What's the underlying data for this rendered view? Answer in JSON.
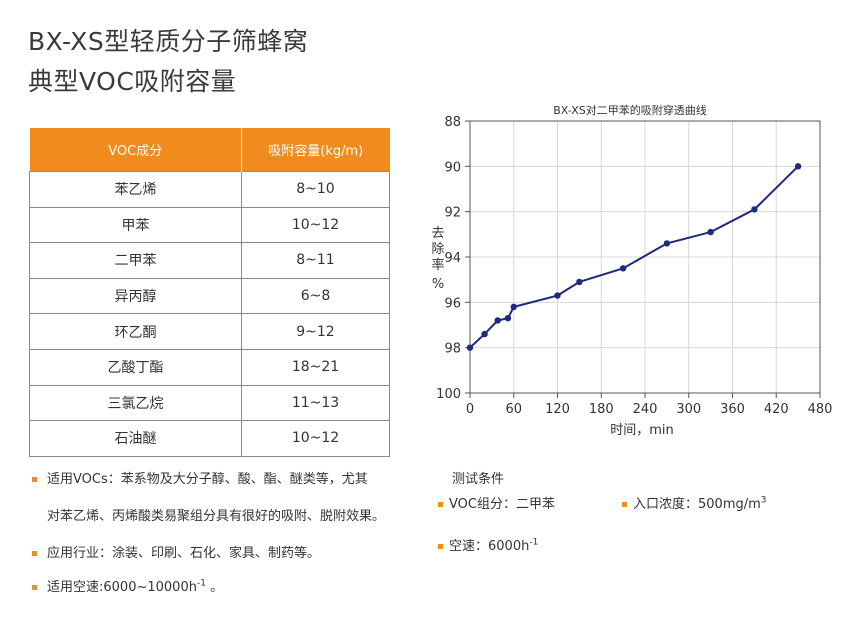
{
  "heading": {
    "line1": "BX-XS型轻质分子筛蜂窝",
    "line2": "典型VOC吸附容量"
  },
  "table": {
    "headers": [
      "VOC成分",
      "吸附容量(kg/m)"
    ],
    "rows": [
      [
        "苯乙烯",
        "8~10"
      ],
      [
        "甲苯",
        "10~12"
      ],
      [
        "二甲苯",
        "8~11"
      ],
      [
        "异丙醇",
        "6~8"
      ],
      [
        "环乙酮",
        "9~12"
      ],
      [
        "乙酸丁酯",
        "18~21"
      ],
      [
        "三氯乙烷",
        "11~13"
      ],
      [
        "石油醚",
        "10~12"
      ]
    ]
  },
  "notes": {
    "line1": "适用VOCs：苯系物及大分子醇、酸、酯、醚类等，尤其",
    "line1_cont": "对苯乙烯、丙烯酸类易聚组分具有很好的吸附、脱附效果。",
    "line2": "应用行业：涂装、印刷、石化、家具、制药等。",
    "line3": "适用空速:6000~10000h",
    "line3_sup": "-1",
    "line3_end": " 。"
  },
  "test_conditions": {
    "title": "测试条件",
    "voc_group": "VOC组分：二甲苯",
    "inlet": "入口浓度：500mg/m",
    "inlet_sup": "3",
    "space_velocity": "空速：6000h",
    "space_velocity_sup": "-1"
  },
  "colors": {
    "accent": "#f08c1e",
    "line": "#1f2a7c",
    "grid": "#d8d8d8"
  },
  "chart_data": {
    "type": "line",
    "title": "BX-XS对二甲苯的吸附穿透曲线",
    "xlabel": "时间，min",
    "ylabel": "去除率 %",
    "xlim": [
      0,
      480
    ],
    "ylim": [
      88,
      100
    ],
    "y_inverted": true,
    "x_ticks": [
      0,
      60,
      120,
      180,
      240,
      300,
      360,
      420,
      480
    ],
    "y_ticks": [
      88,
      90,
      92,
      94,
      96,
      98,
      100
    ],
    "grid": true,
    "series": [
      {
        "x": [
          0,
          20,
          38,
          52,
          60,
          120,
          150,
          210,
          270,
          330,
          390,
          450
        ],
        "y": [
          98.0,
          97.4,
          96.8,
          96.7,
          96.2,
          95.7,
          95.1,
          94.5,
          93.4,
          92.9,
          91.9,
          90.0
        ]
      }
    ]
  }
}
